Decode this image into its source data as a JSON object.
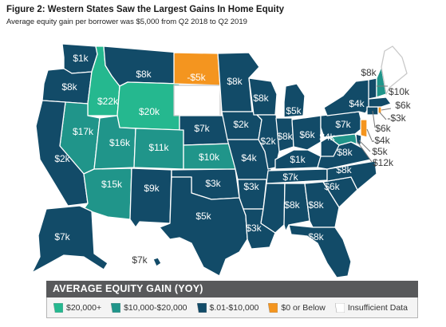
{
  "title": "Figure 2: Western States Saw the Largest Gains In Home Equity",
  "subtitle": "Average  equity gain per borrower  was $5,000 from Q2 2018 to Q2 2019",
  "colors": {
    "high": "#25b88f",
    "mid": "#20958a",
    "low": "#124b68",
    "negative": "#f4951f",
    "nodata": "#ffffff",
    "legend_header": "#58595b"
  },
  "legend": {
    "title": "AVERAGE EQUITY GAIN (YOY)",
    "items": [
      {
        "label": "$20,000+",
        "color": "#25b88f"
      },
      {
        "label": "$10,000-$20,000",
        "color": "#20958a"
      },
      {
        "label": "$.01-$10,000",
        "color": "#124b68"
      },
      {
        "label": "$0 or Below",
        "color": "#f4951f"
      },
      {
        "label": "Insufficient Data",
        "color": "#ffffff"
      }
    ]
  },
  "states": {
    "WA": "$1k",
    "OR": "$8k",
    "ID": "$22k",
    "MT": "$8k",
    "WY": "$20k",
    "ND": "-$5k",
    "SD": "",
    "MN": "$8k",
    "NV": "$17k",
    "UT": "$16k",
    "CO": "$11k",
    "NE": "$7k",
    "KS": "$10k",
    "CA": "$2k",
    "AZ": "$15k",
    "NM": "$9k",
    "OK": "$3k",
    "TX": "$5k",
    "IA": "$2k",
    "MO": "$4k",
    "AR": "$3k",
    "LA": "$3k",
    "WI": "$8k",
    "IL": "$2k",
    "MI": "$5k",
    "IN": "$8k",
    "OH": "$6k",
    "KY": "$1k",
    "TN": "$7k",
    "MS": "$8k",
    "AL": "$8k",
    "GA": "$6k",
    "FL": "$8k",
    "SC": "$8k",
    "NC": "$8k",
    "VA": "$8k",
    "WV": "$4k",
    "PA": "$7k",
    "NY": "$4k",
    "VT": "$8k",
    "NH": "$10k",
    "MA": "$6k",
    "RI": "-$3k",
    "CT": "$6k",
    "NJ": "-$4k",
    "DE": "$5k",
    "MD": "$12k",
    "ME": "",
    "AK": "$7k",
    "HI": "$7k"
  }
}
